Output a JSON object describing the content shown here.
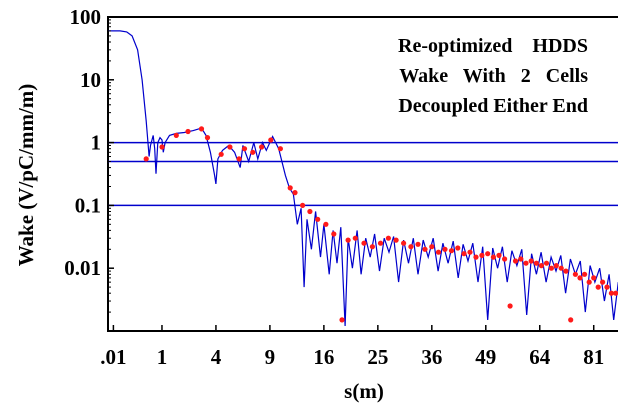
{
  "chart_data": {
    "type": "line",
    "xlabel": "s(m)",
    "ylabel": "Wake (V/pC/mm/m)",
    "y_scale": "log",
    "x_scale": "sqrt",
    "xlim": [
      0,
      90
    ],
    "ylim": [
      0.001,
      100
    ],
    "x_ticks": [
      {
        "value": 0.01,
        "label": ".01"
      },
      {
        "value": 1,
        "label": "1"
      },
      {
        "value": 4,
        "label": "4"
      },
      {
        "value": 9,
        "label": "9"
      },
      {
        "value": 16,
        "label": "16"
      },
      {
        "value": 25,
        "label": "25"
      },
      {
        "value": 36,
        "label": "36"
      },
      {
        "value": 49,
        "label": "49"
      },
      {
        "value": 64,
        "label": "64"
      },
      {
        "value": 81,
        "label": "81"
      }
    ],
    "y_ticks": [
      {
        "value": 100,
        "label": "100"
      },
      {
        "value": 10,
        "label": "10"
      },
      {
        "value": 1,
        "label": "1"
      },
      {
        "value": 0.1,
        "label": "0.1"
      },
      {
        "value": 0.01,
        "label": "0.01"
      }
    ],
    "reference_lines": [
      1,
      0.5,
      0.1
    ],
    "annotations": [
      "Re-optimized    HDDS",
      "Wake   With   2   Cells",
      "Decoupled Either End"
    ],
    "colors": {
      "line": "#0000cc",
      "markers": "#ff1a1a",
      "reference": "#0000cc"
    },
    "series": [
      {
        "style": "line",
        "points": [
          [
            0,
            60
          ],
          [
            0.05,
            60
          ],
          [
            0.12,
            58
          ],
          [
            0.2,
            50
          ],
          [
            0.3,
            30
          ],
          [
            0.4,
            10
          ],
          [
            0.5,
            2.2
          ],
          [
            0.58,
            0.6
          ],
          [
            0.62,
            0.9
          ],
          [
            0.7,
            1.3
          ],
          [
            0.75,
            0.8
          ],
          [
            0.79,
            0.32
          ],
          [
            0.85,
            1.0
          ],
          [
            0.93,
            1.2
          ],
          [
            1.0,
            1.1
          ],
          [
            1.05,
            0.7
          ],
          [
            1.12,
            1.0
          ],
          [
            1.3,
            1.3
          ],
          [
            1.6,
            1.4
          ],
          [
            2.0,
            1.45
          ],
          [
            2.5,
            1.55
          ],
          [
            3.0,
            1.7
          ],
          [
            3.3,
            1.3
          ],
          [
            3.6,
            0.7
          ],
          [
            3.9,
            0.3
          ],
          [
            4.0,
            0.22
          ],
          [
            4.15,
            0.55
          ],
          [
            4.5,
            0.75
          ],
          [
            5.0,
            0.9
          ],
          [
            5.5,
            0.7
          ],
          [
            6.0,
            0.4
          ],
          [
            6.25,
            0.9
          ],
          [
            6.8,
            0.5
          ],
          [
            7.3,
            1.0
          ],
          [
            7.7,
            0.55
          ],
          [
            8.2,
            1.0
          ],
          [
            8.6,
            0.75
          ],
          [
            9.3,
            1.25
          ],
          [
            10.0,
            0.8
          ],
          [
            10.8,
            0.3
          ],
          [
            11.3,
            0.19
          ],
          [
            11.8,
            0.15
          ],
          [
            12.3,
            0.05
          ],
          [
            12.8,
            0.09
          ],
          [
            13.2,
            0.005
          ],
          [
            13.6,
            0.06
          ],
          [
            14.2,
            0.02
          ],
          [
            14.8,
            0.08
          ],
          [
            15.5,
            0.015
          ],
          [
            16.0,
            0.05
          ],
          [
            16.8,
            0.008
          ],
          [
            17.4,
            0.04
          ],
          [
            18.0,
            0.012
          ],
          [
            18.6,
            0.045
          ],
          [
            19.3,
            0.0012
          ],
          [
            19.8,
            0.03
          ],
          [
            20.5,
            0.01
          ],
          [
            21.3,
            0.04
          ],
          [
            22.0,
            0.008
          ],
          [
            22.8,
            0.03
          ],
          [
            23.6,
            0.015
          ],
          [
            24.4,
            0.035
          ],
          [
            25.3,
            0.009
          ],
          [
            26.2,
            0.03
          ],
          [
            27.1,
            0.018
          ],
          [
            28.0,
            0.032
          ],
          [
            29.0,
            0.006
          ],
          [
            30.0,
            0.028
          ],
          [
            31.0,
            0.012
          ],
          [
            32.0,
            0.03
          ],
          [
            33.0,
            0.008
          ],
          [
            34.1,
            0.028
          ],
          [
            35.2,
            0.015
          ],
          [
            36.3,
            0.03
          ],
          [
            37.4,
            0.009
          ],
          [
            38.5,
            0.025
          ],
          [
            39.7,
            0.012
          ],
          [
            40.9,
            0.027
          ],
          [
            42.1,
            0.007
          ],
          [
            43.3,
            0.024
          ],
          [
            44.5,
            0.013
          ],
          [
            45.7,
            0.025
          ],
          [
            47.0,
            0.006
          ],
          [
            48.2,
            0.022
          ],
          [
            49.5,
            0.0015
          ],
          [
            50.8,
            0.021
          ],
          [
            52.1,
            0.01
          ],
          [
            53.4,
            0.022
          ],
          [
            54.7,
            0.006
          ],
          [
            56.0,
            0.019
          ],
          [
            57.4,
            0.011
          ],
          [
            58.8,
            0.02
          ],
          [
            60.2,
            0.0018
          ],
          [
            61.6,
            0.017
          ],
          [
            63.0,
            0.008
          ],
          [
            64.4,
            0.018
          ],
          [
            65.9,
            0.006
          ],
          [
            67.4,
            0.015
          ],
          [
            68.9,
            0.009
          ],
          [
            70.4,
            0.016
          ],
          [
            71.9,
            0.004
          ],
          [
            73.4,
            0.014
          ],
          [
            75.0,
            0.008
          ],
          [
            76.6,
            0.013
          ],
          [
            78.2,
            0.002
          ],
          [
            79.8,
            0.011
          ],
          [
            81.4,
            0.006
          ],
          [
            83.0,
            0.01
          ],
          [
            84.6,
            0.003
          ],
          [
            86.2,
            0.008
          ],
          [
            87.8,
            0.0015
          ],
          [
            89.4,
            0.006
          ],
          [
            90.0,
            0.004
          ]
        ]
      },
      {
        "style": "markers",
        "points": [
          [
            0.5,
            0.55
          ],
          [
            1.0,
            0.85
          ],
          [
            1.6,
            1.3
          ],
          [
            2.2,
            1.5
          ],
          [
            3.0,
            1.65
          ],
          [
            3.4,
            1.2
          ],
          [
            4.4,
            0.65
          ],
          [
            5.1,
            0.85
          ],
          [
            5.9,
            0.55
          ],
          [
            6.4,
            0.8
          ],
          [
            7.2,
            0.7
          ],
          [
            8.1,
            0.85
          ],
          [
            9.1,
            1.1
          ],
          [
            10.2,
            0.8
          ],
          [
            11.4,
            0.19
          ],
          [
            12.0,
            0.16
          ],
          [
            13.0,
            0.1
          ],
          [
            14.0,
            0.08
          ],
          [
            15.1,
            0.06
          ],
          [
            16.3,
            0.05
          ],
          [
            17.5,
            0.035
          ],
          [
            18.8,
            0.0015
          ],
          [
            19.8,
            0.028
          ],
          [
            21.0,
            0.03
          ],
          [
            22.5,
            0.025
          ],
          [
            24.0,
            0.022
          ],
          [
            25.5,
            0.025
          ],
          [
            27.0,
            0.03
          ],
          [
            28.5,
            0.028
          ],
          [
            30.0,
            0.025
          ],
          [
            31.5,
            0.022
          ],
          [
            33.0,
            0.024
          ],
          [
            34.5,
            0.02
          ],
          [
            36.0,
            0.022
          ],
          [
            37.5,
            0.018
          ],
          [
            39.0,
            0.02
          ],
          [
            40.5,
            0.019
          ],
          [
            42.0,
            0.021
          ],
          [
            43.5,
            0.017
          ],
          [
            45.0,
            0.018
          ],
          [
            46.5,
            0.015
          ],
          [
            48.0,
            0.016
          ],
          [
            49.5,
            0.017
          ],
          [
            51.0,
            0.015
          ],
          [
            52.5,
            0.016
          ],
          [
            54.0,
            0.014
          ],
          [
            55.5,
            0.0025
          ],
          [
            57.0,
            0.013
          ],
          [
            58.5,
            0.014
          ],
          [
            60.0,
            0.012
          ],
          [
            61.5,
            0.013
          ],
          [
            63.0,
            0.012
          ],
          [
            64.5,
            0.011
          ],
          [
            66.0,
            0.012
          ],
          [
            67.5,
            0.01
          ],
          [
            69.0,
            0.011
          ],
          [
            70.5,
            0.01
          ],
          [
            72.0,
            0.009
          ],
          [
            73.5,
            0.0015
          ],
          [
            75.0,
            0.008
          ],
          [
            76.5,
            0.007
          ],
          [
            78.0,
            0.008
          ],
          [
            79.5,
            0.006
          ],
          [
            81.0,
            0.007
          ],
          [
            82.5,
            0.005
          ],
          [
            84.0,
            0.006
          ],
          [
            85.5,
            0.005
          ],
          [
            87.0,
            0.004
          ],
          [
            88.5,
            0.004
          ]
        ]
      }
    ]
  }
}
